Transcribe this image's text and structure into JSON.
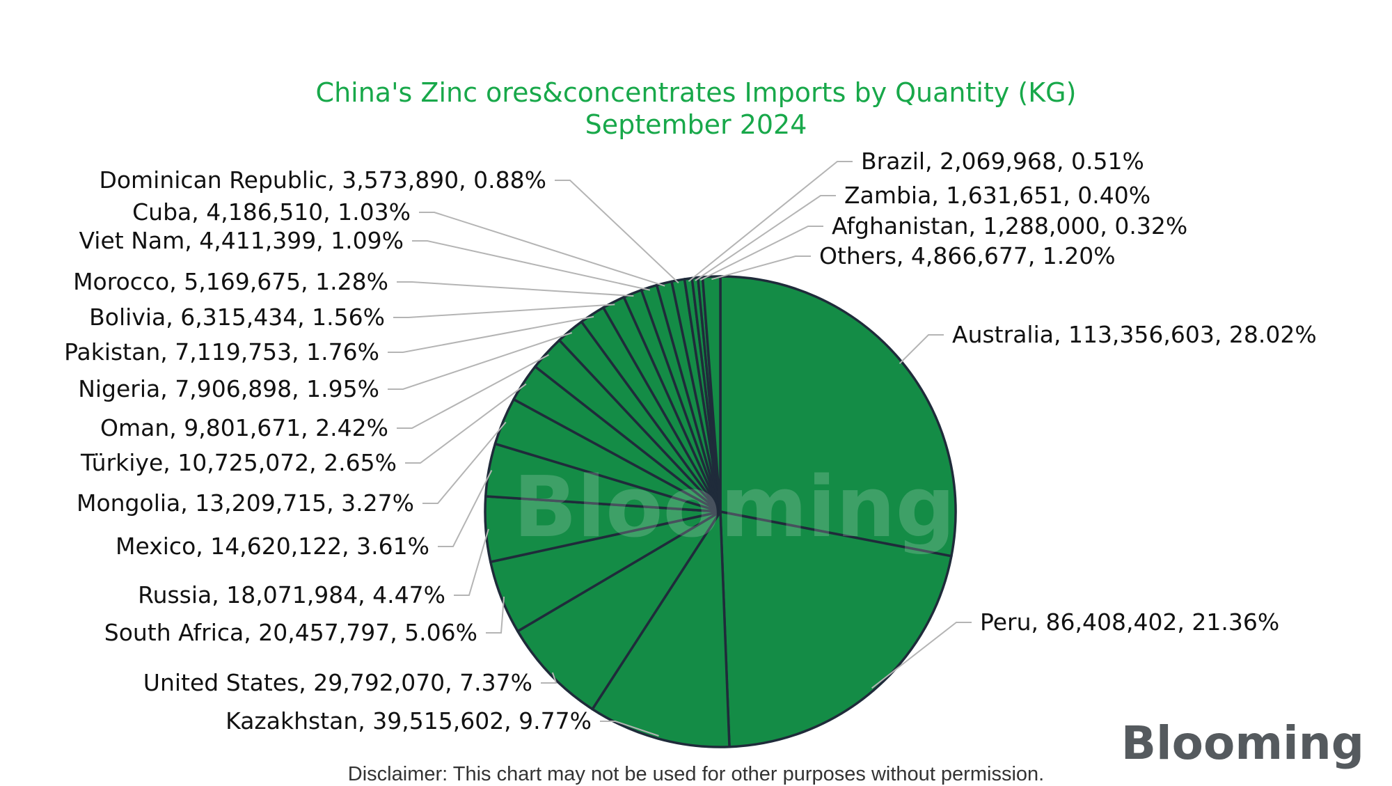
{
  "chart_data": {
    "type": "pie",
    "title": "China's Zinc ores&concentrates Imports by Quantity (KG)",
    "subtitle": "September 2024",
    "slices": [
      {
        "label": "Australia",
        "value": 113356603,
        "value_text": "113,356,603",
        "percent": "28.02%"
      },
      {
        "label": "Peru",
        "value": 86408402,
        "value_text": "86,408,402",
        "percent": "21.36%"
      },
      {
        "label": "Kazakhstan",
        "value": 39515602,
        "value_text": "39,515,602",
        "percent": "9.77%"
      },
      {
        "label": "United States",
        "value": 29792070,
        "value_text": "29,792,070",
        "percent": "7.37%"
      },
      {
        "label": "South Africa",
        "value": 20457797,
        "value_text": "20,457,797",
        "percent": "5.06%"
      },
      {
        "label": "Russia",
        "value": 18071984,
        "value_text": "18,071,984",
        "percent": "4.47%"
      },
      {
        "label": "Mexico",
        "value": 14620122,
        "value_text": "14,620,122",
        "percent": "3.61%"
      },
      {
        "label": "Mongolia",
        "value": 13209715,
        "value_text": "13,209,715",
        "percent": "3.27%"
      },
      {
        "label": "Türkiye",
        "value": 10725072,
        "value_text": "10,725,072",
        "percent": "2.65%"
      },
      {
        "label": "Oman",
        "value": 9801671,
        "value_text": "9,801,671",
        "percent": "2.42%"
      },
      {
        "label": "Nigeria",
        "value": 7906898,
        "value_text": "7,906,898",
        "percent": "1.95%"
      },
      {
        "label": "Pakistan",
        "value": 7119753,
        "value_text": "7,119,753",
        "percent": "1.76%"
      },
      {
        "label": "Bolivia",
        "value": 6315434,
        "value_text": "6,315,434",
        "percent": "1.56%"
      },
      {
        "label": "Morocco",
        "value": 5169675,
        "value_text": "5,169,675",
        "percent": "1.28%"
      },
      {
        "label": "Viet Nam",
        "value": 4411399,
        "value_text": "4,411,399",
        "percent": "1.09%"
      },
      {
        "label": "Cuba",
        "value": 4186510,
        "value_text": "4,186,510",
        "percent": "1.03%"
      },
      {
        "label": "Dominican Republic",
        "value": 3573890,
        "value_text": "3,573,890",
        "percent": "0.88%"
      },
      {
        "label": "Brazil",
        "value": 2069968,
        "value_text": "2,069,968",
        "percent": "0.51%"
      },
      {
        "label": "Zambia",
        "value": 1631651,
        "value_text": "1,631,651",
        "percent": "0.40%"
      },
      {
        "label": "Afghanistan",
        "value": 1288000,
        "value_text": "1,288,000",
        "percent": "0.32%"
      },
      {
        "label": "Others",
        "value": 4866677,
        "value_text": "4,866,677",
        "percent": "1.20%"
      }
    ]
  },
  "colors": {
    "title": "#18a84a",
    "slice_fill": "#148c46",
    "slice_stroke": "#1f2b3a",
    "leader": "#b4b4b4",
    "label": "#111111"
  },
  "watermark": "Blooming",
  "logo": "Blooming",
  "disclaimer": "Disclaimer: This chart may not be used for other purposes without permission."
}
